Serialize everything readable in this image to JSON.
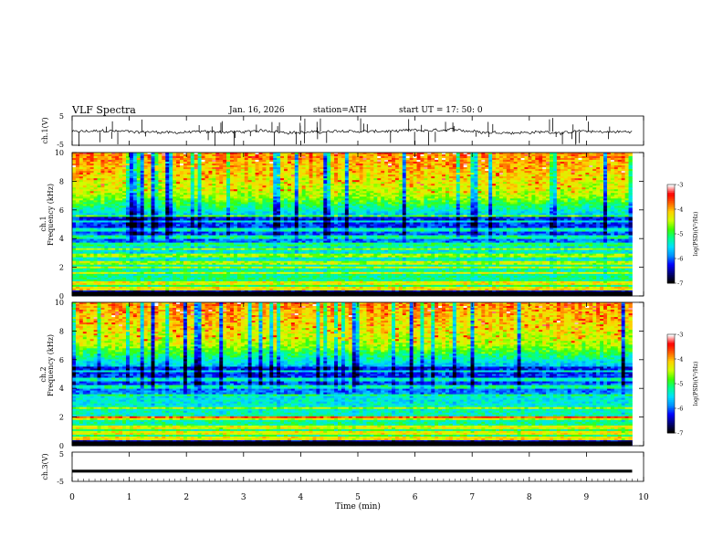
{
  "header": {
    "title": "VLF  Spectra",
    "date": "Jan. 16, 2026",
    "station": "station=ATH",
    "start": "start  UT  =   17: 50: 0"
  },
  "chart_data": [
    {
      "type": "line",
      "name": "ch1-waveform",
      "ylabel": "ch.1(V)",
      "ylim": [
        -5,
        5
      ],
      "yticks": [
        "5",
        "-5"
      ]
    },
    {
      "type": "heatmap",
      "name": "ch1-spectrogram",
      "ylabel": "Frequency  (kHz)",
      "ylabel2": "ch.1",
      "ylim": [
        0,
        10
      ],
      "yticks": [
        "10",
        "8",
        "6",
        "4",
        "2",
        "0"
      ],
      "colorbar": {
        "label": "log(PSD)(V²/Hz)",
        "range": [
          -7,
          -3
        ],
        "ticks": [
          "-3",
          "-4",
          "-5",
          "-6",
          "-7"
        ]
      },
      "bands_khz": [
        0.5,
        0.9,
        1.6,
        2.0,
        2.3,
        2.8,
        3.3,
        3.6,
        4.1,
        4.6,
        5.2,
        5.6
      ]
    },
    {
      "type": "heatmap",
      "name": "ch2-spectrogram",
      "ylabel": "Frequency  (kHz)",
      "ylabel2": "ch.2",
      "ylim": [
        0,
        10
      ],
      "yticks": [
        "10",
        "8",
        "6",
        "4",
        "2",
        "0"
      ],
      "colorbar": {
        "label": "log(PSD)(V²/Hz)",
        "range": [
          -7,
          -3
        ],
        "ticks": [
          "-3",
          "-4",
          "-5",
          "-6",
          "-7"
        ]
      },
      "bands_khz": [
        0.5,
        0.9,
        1.3,
        1.9,
        2.0,
        2.6,
        3.5,
        4.1,
        4.6,
        5.2
      ]
    },
    {
      "type": "line",
      "name": "ch3-waveform",
      "ylabel": "ch.3(V)",
      "ylim": [
        -5,
        5
      ],
      "yticks": [
        "5",
        "-5"
      ],
      "value": -1.5
    }
  ],
  "xaxis": {
    "label": "Time  (min)",
    "range": [
      0,
      10
    ],
    "data_end": 9.8,
    "ticks": [
      "0",
      "1",
      "2",
      "3",
      "4",
      "5",
      "6",
      "7",
      "8",
      "9",
      "10"
    ]
  },
  "colors": {
    "axis": "#000000",
    "colormap": [
      "#000000",
      "#00007a",
      "#0000ff",
      "#0090ff",
      "#00e0ff",
      "#00ff90",
      "#40ff00",
      "#d0ff00",
      "#ffd000",
      "#ff6000",
      "#ff0000",
      "#ffffff"
    ]
  }
}
